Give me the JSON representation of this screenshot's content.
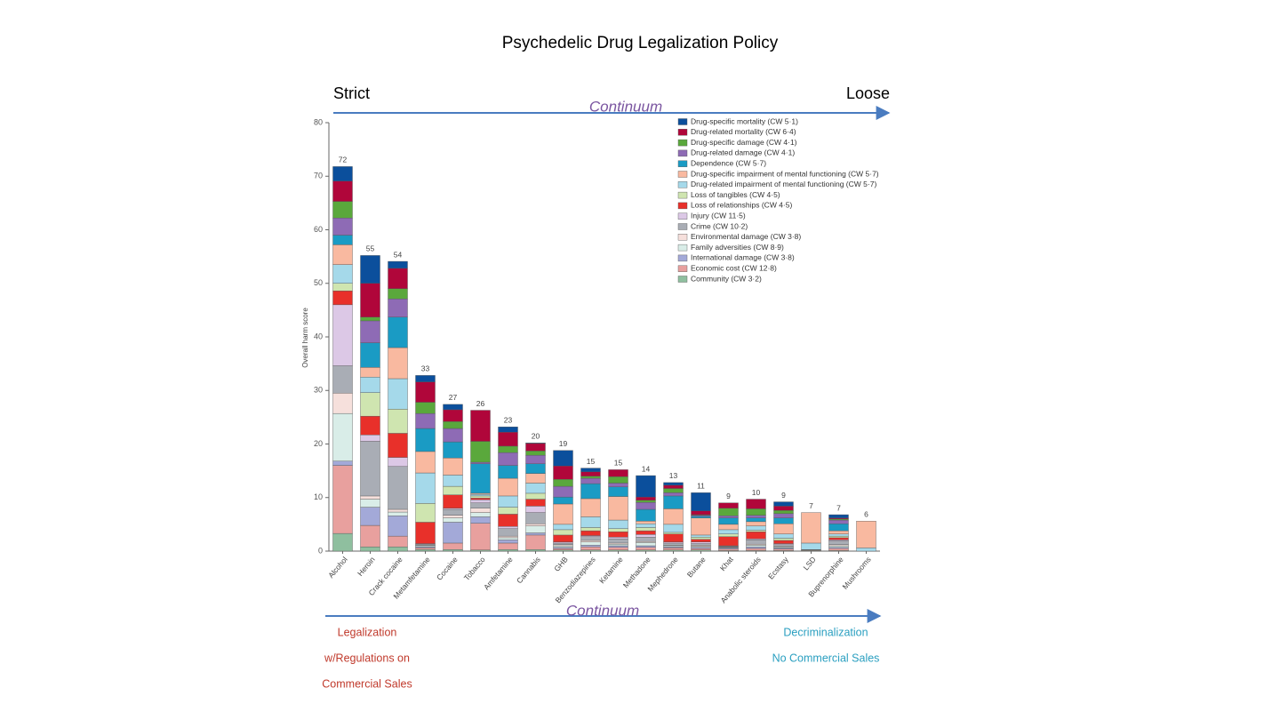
{
  "chart_data": {
    "type": "stacked_bar",
    "title": "Psychedelic Drug Legalization Policy",
    "left_label": "Strict",
    "right_label": "Loose",
    "top_arrow_label": "Continuum",
    "bottom_arrow_label": "Continuum",
    "left_policy": [
      "Legalization",
      "w/Regulations on",
      "Commercial Sales"
    ],
    "right_policy": [
      "Decriminalization",
      "No Commercial Sales"
    ],
    "y_label": "Overall harm score",
    "ylim": [
      0,
      80
    ],
    "yticks": [
      0,
      10,
      20,
      30,
      40,
      50,
      60,
      70,
      80
    ],
    "legend_position": "upper right",
    "categories": [
      "Alcohol",
      "Heroin",
      "Crack cocaine",
      "Metamfetamine",
      "Cocaine",
      "Tobacco",
      "Amfetamine",
      "Cannabis",
      "GHB",
      "Benzodiazepines",
      "Ketamine",
      "Methadone",
      "Mephedrone",
      "Butane",
      "Khat",
      "Anabolic steroids",
      "Ecstasy",
      "LSD",
      "Buprenorphine",
      "Mushrooms"
    ],
    "totals": [
      72,
      55,
      54,
      33,
      27,
      26,
      23,
      20,
      19,
      15,
      15,
      14,
      13,
      11,
      9,
      10,
      9,
      7,
      7,
      6
    ],
    "series": [
      {
        "name": "Drug-specific mortality (CW 5·1)",
        "color": "#0b4f9c",
        "values": [
          2.7,
          5.2,
          1.3,
          1.2,
          1.0,
          0,
          1.0,
          0.1,
          2.9,
          0.7,
          0,
          4.0,
          0.5,
          3.4,
          0,
          0,
          0.8,
          0,
          0.6,
          0
        ]
      },
      {
        "name": "Drug-related mortality (CW 6·4)",
        "color": "#b0063a",
        "values": [
          3.8,
          6.3,
          3.8,
          3.8,
          2.2,
          5.8,
          2.6,
          1.4,
          2.5,
          0.8,
          1.3,
          0.6,
          0.6,
          0.7,
          1.0,
          1.8,
          0.8,
          0,
          0.2,
          0
        ]
      },
      {
        "name": "Drug-specific damage (CW 4·1)",
        "color": "#5aa83c",
        "values": [
          3.1,
          0.7,
          1.9,
          2.1,
          1.3,
          3.9,
          1.2,
          0.8,
          1.3,
          0.4,
          1.2,
          0.4,
          0.8,
          0.1,
          1.4,
          1.2,
          0.6,
          0,
          0.2,
          0
        ]
      },
      {
        "name": "Drug-related damage (CW 4·1)",
        "color": "#8e6bb5",
        "values": [
          3.2,
          4.1,
          3.4,
          2.8,
          2.5,
          0.3,
          2.4,
          1.6,
          2.0,
          1.0,
          0.7,
          1.3,
          0.6,
          0.2,
          0.4,
          0.5,
          0.8,
          0,
          0.7,
          0
        ]
      },
      {
        "name": "Dependence (CW 5·7)",
        "color": "#1a9bc4",
        "values": [
          1.8,
          4.6,
          5.7,
          4.3,
          3.0,
          5.5,
          2.4,
          1.8,
          1.3,
          2.8,
          1.8,
          2.2,
          2.4,
          0.3,
          1.2,
          0.7,
          1.1,
          0,
          1.3,
          0
        ]
      },
      {
        "name": "Drug-specific impairment of mental functioning (CW 5·7)",
        "color": "#f9b9a0",
        "values": [
          3.7,
          1.8,
          5.8,
          4.0,
          3.2,
          0.2,
          3.3,
          1.8,
          3.8,
          3.4,
          4.4,
          0.5,
          2.9,
          3.2,
          1.0,
          0.8,
          1.9,
          5.7,
          0.6,
          5.0
        ]
      },
      {
        "name": "Drug-related impairment of mental functioning (CW 5·7)",
        "color": "#a5d9ea",
        "values": [
          3.5,
          2.9,
          5.7,
          5.7,
          2.1,
          0.3,
          2.1,
          1.9,
          1.0,
          2.0,
          1.6,
          0.7,
          1.5,
          0.4,
          0.8,
          0.8,
          0.8,
          1.2,
          0.4,
          0.6
        ]
      },
      {
        "name": "Loss of tangibles (CW 4·5)",
        "color": "#cfe5b0",
        "values": [
          1.4,
          4.4,
          4.5,
          3.5,
          1.6,
          0.4,
          1.3,
          1.1,
          1.0,
          0.6,
          0.6,
          0.6,
          0.3,
          0.4,
          0.5,
          0.3,
          0.4,
          0,
          0.3,
          0
        ]
      },
      {
        "name": "Loss of relationships (CW 4·5)",
        "color": "#e8302a",
        "values": [
          2.6,
          3.5,
          4.5,
          4.0,
          2.5,
          0.3,
          2.3,
          1.3,
          1.3,
          0.9,
          1.0,
          0.7,
          1.5,
          0.5,
          1.7,
          1.3,
          0.6,
          0,
          0.4,
          0
        ]
      },
      {
        "name": "Injury (CW 11·5)",
        "color": "#dcc8e6",
        "values": [
          11.4,
          1.2,
          1.7,
          0.1,
          0.2,
          0.6,
          0.4,
          1.2,
          0.2,
          0.2,
          0.3,
          0.5,
          0.2,
          0.3,
          0.1,
          0.2,
          0.2,
          0,
          0.2,
          0
        ]
      },
      {
        "name": "Crime (CW 10·2)",
        "color": "#a9adb5",
        "values": [
          5.1,
          10.2,
          8.0,
          0.2,
          1.1,
          1.0,
          1.4,
          2.1,
          0.3,
          0.7,
          0.8,
          0.8,
          0.4,
          0.3,
          0.1,
          0.8,
          0.3,
          0.1,
          0.7,
          0
        ]
      },
      {
        "name": "Environmental damage (CW 3·8)",
        "color": "#f6e0dc",
        "values": [
          3.8,
          0.6,
          0.5,
          0.1,
          0.5,
          0.8,
          0.3,
          0.4,
          0.2,
          0.3,
          0.2,
          0.2,
          0.1,
          0.2,
          0.1,
          0.2,
          0.1,
          0,
          0.2,
          0
        ]
      },
      {
        "name": "Family adversities (CW 8·9)",
        "color": "#d9ede8",
        "values": [
          8.9,
          1.5,
          0.7,
          0.2,
          0.8,
          0.8,
          0.4,
          1.3,
          0.3,
          0.6,
          0.3,
          0.6,
          0.2,
          0.2,
          0.1,
          0.3,
          0.2,
          0,
          0.3,
          0
        ]
      },
      {
        "name": "International damage (CW 3·8)",
        "color": "#a3a9d8",
        "values": [
          0.8,
          3.4,
          3.8,
          0.2,
          3.9,
          1.2,
          0.6,
          0.4,
          0.2,
          0.3,
          0.3,
          0.3,
          0.2,
          0.2,
          0.2,
          0.3,
          0.2,
          0,
          0.2,
          0
        ]
      },
      {
        "name": "Economic cost (CW 12·8)",
        "color": "#e8a09e",
        "values": [
          12.7,
          4.0,
          2.0,
          0.3,
          1.2,
          5.0,
          1.2,
          2.7,
          0.3,
          0.6,
          0.5,
          0.5,
          0.4,
          0.3,
          0.3,
          0.4,
          0.3,
          0.1,
          0.4,
          0
        ]
      },
      {
        "name": "Community (CW 3·2)",
        "color": "#8fbf9f",
        "values": [
          3.3,
          0.8,
          0.8,
          0.3,
          0.3,
          0.2,
          0.3,
          0.3,
          0.2,
          0.2,
          0.2,
          0.2,
          0.2,
          0.2,
          0.1,
          0.1,
          0.1,
          0.1,
          0.1,
          0
        ]
      }
    ]
  }
}
